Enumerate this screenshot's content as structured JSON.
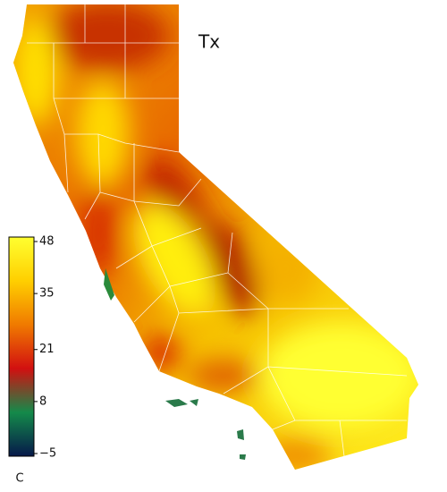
{
  "map": {
    "title": "Tx",
    "colorbar": {
      "lim": [
        -5,
        48
      ],
      "ticks": [
        48,
        35,
        21,
        8,
        {
          "value": -5,
          "label": "−5"
        }
      ],
      "unit": "C",
      "colors": [
        "#06184a",
        "#148a4a",
        "#d21010",
        "#f07a00",
        "#ffcf00",
        "#ffff30"
      ]
    }
  }
}
